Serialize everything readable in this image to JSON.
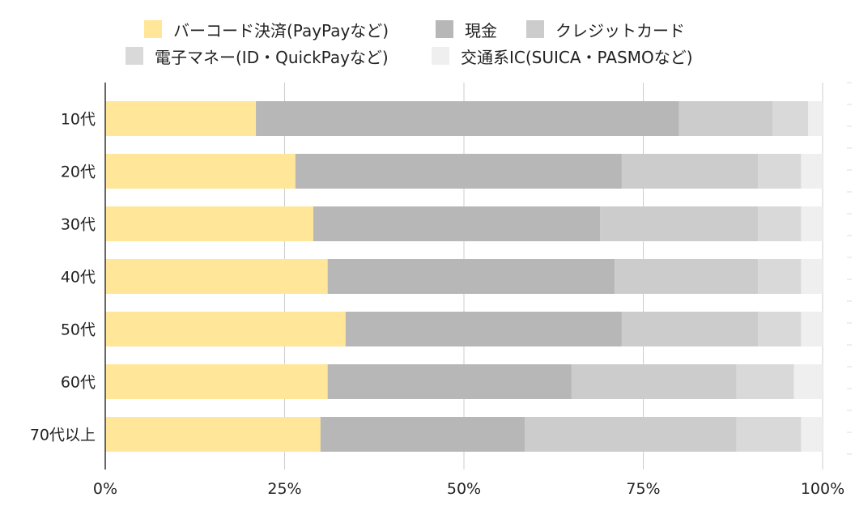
{
  "chart_data": {
    "type": "bar",
    "orientation": "horizontal",
    "stacked": "percent",
    "categories": [
      "10代",
      "20代",
      "30代",
      "40代",
      "50代",
      "60代",
      "70代以上"
    ],
    "series": [
      {
        "name": "バーコード決済(PayPayなど)",
        "color": "#FFE699",
        "values": [
          21,
          26.5,
          29,
          31,
          33.5,
          31,
          30
        ]
      },
      {
        "name": "現金",
        "color": "#B7B7B7",
        "values": [
          59,
          45.5,
          40,
          40,
          38.5,
          34,
          28.5
        ]
      },
      {
        "name": "クレジットカード",
        "color": "#CCCCCC",
        "values": [
          13,
          19,
          22,
          20,
          19,
          23,
          29.5
        ]
      },
      {
        "name": "電子マネー(ID・QuickPayなど)",
        "color": "#D9D9D9",
        "values": [
          5,
          6,
          6,
          6,
          6,
          8,
          9
        ]
      },
      {
        "name": "交通系IC(SUICA・PASMOなど)",
        "color": "#EFEFEF",
        "values": [
          2,
          3,
          3,
          3,
          3,
          4,
          3
        ]
      }
    ],
    "xticks": [
      "0%",
      "25%",
      "50%",
      "75%",
      "100%"
    ],
    "xlim": [
      0,
      100
    ],
    "grid": true,
    "legend_position": "top"
  }
}
